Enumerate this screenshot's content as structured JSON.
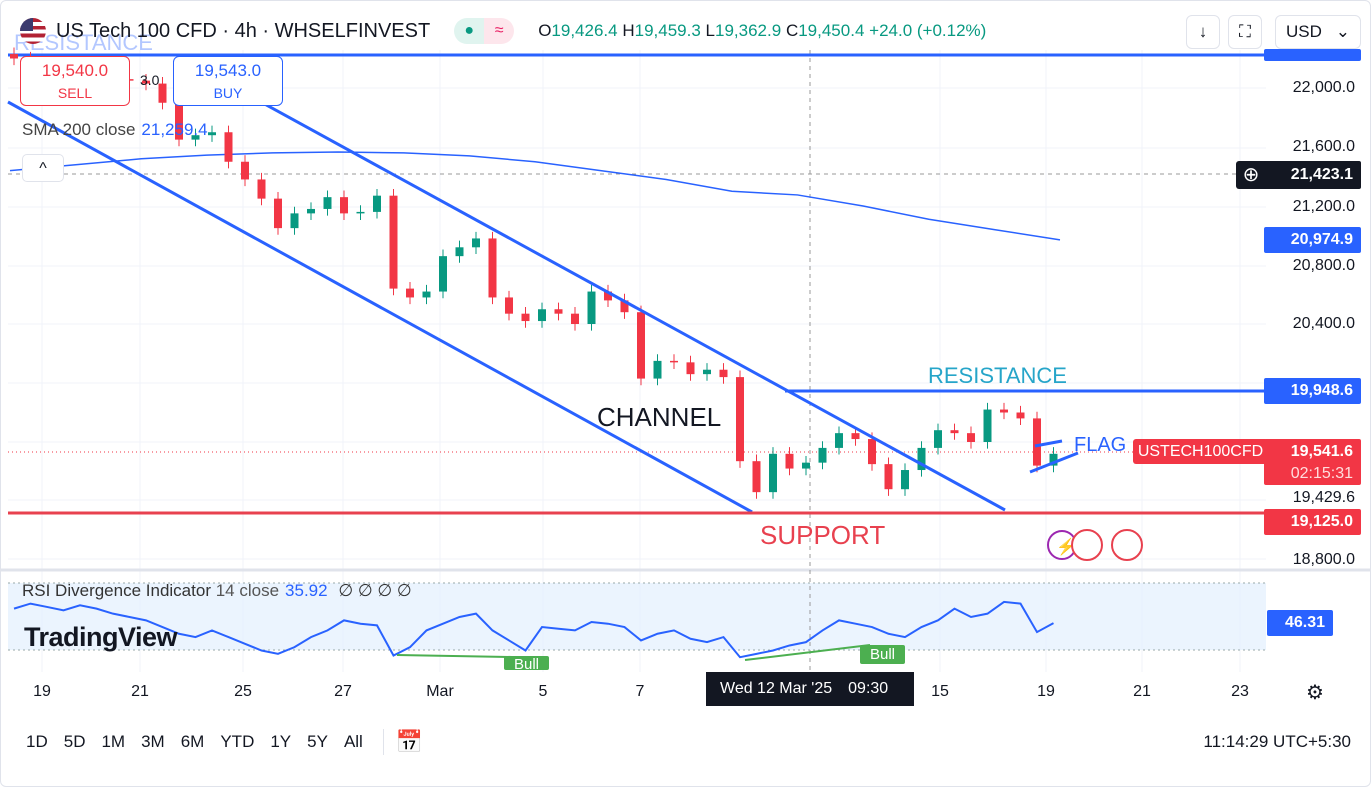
{
  "header": {
    "symbol": "US Tech 100 CFD · 4h · WHSELFINVEST",
    "open_label": "O",
    "open": "19,426.4",
    "high_label": "H",
    "high": "19,459.3",
    "low_label": "L",
    "low": "19,362.9",
    "close_label": "C",
    "close": "19,450.4",
    "change": "+24.0 (+0.12%)",
    "currency": "USD",
    "currency_chevron": "⌄",
    "download_icon": "↓",
    "fullscreen_icon": "⛶"
  },
  "trade": {
    "sell_price": "19,540.0",
    "sell_label": "SELL",
    "buy_price": "19,543.0",
    "buy_label": "BUY",
    "spread": "3.0"
  },
  "sma": {
    "label": "SMA 200 close",
    "value": "21,259.4"
  },
  "collapse_icon": "^",
  "annotations": {
    "resistance_top": "RESISTANCE",
    "channel": "CHANNEL",
    "resistance": "RESISTANCE",
    "support": "SUPPORT",
    "flag": "FLAG",
    "bull1": "Bull",
    "bull2": "Bull"
  },
  "price_axis": {
    "ticks": [
      "22,000.0",
      "21,600.0",
      "21,200.0",
      "20,800.0",
      "20,400.0",
      "19,429.6",
      "18,800.0"
    ],
    "crosshair": "21,423.1",
    "sma_tag": "20,974.9",
    "resistance_tag": "19,948.6",
    "symbol_tag": "USTECH100CFD",
    "last_price": "19,541.6",
    "countdown": "02:15:31",
    "support_tag": "19,125.0",
    "rsi_tag": "46.31"
  },
  "rsi": {
    "label": "RSI Divergence Indicator",
    "params": "14 close",
    "value": "35.92",
    "extras": "∅ ∅ ∅ ∅"
  },
  "logo": "TradingView",
  "time_axis": {
    "ticks": [
      "19",
      "21",
      "25",
      "27",
      "Mar",
      "5",
      "7",
      "15",
      "19",
      "21",
      "23"
    ],
    "crosshair": "Wed 12 Mar '25",
    "crosshair_time": "09:30"
  },
  "ranges": [
    "1D",
    "5D",
    "1M",
    "3M",
    "6M",
    "YTD",
    "1Y",
    "5Y",
    "All"
  ],
  "clock": "11:14:29 UTC+5:30",
  "colors": {
    "up": "#089981",
    "down": "#f23645",
    "accent": "#2962ff",
    "support": "#e8414f",
    "resistance_text": "#26a5c9"
  },
  "chart_data": {
    "type": "candlestick",
    "title": "US Tech 100 CFD · 4h",
    "ylim": [
      18700,
      22250
    ],
    "closes": [
      22200,
      22150,
      22120,
      22100,
      22090,
      22080,
      22060,
      22050,
      22030,
      21900,
      21650,
      21680,
      21700,
      21500,
      21380,
      21250,
      21050,
      21150,
      21180,
      21260,
      21150,
      21160,
      21270,
      20640,
      20580,
      20620,
      20860,
      20920,
      20980,
      20580,
      20470,
      20420,
      20500,
      20470,
      20400,
      20620,
      20560,
      20480,
      20030,
      20150,
      20140,
      20060,
      20090,
      20040,
      19470,
      19260,
      19520,
      19420,
      19460,
      19560,
      19660,
      19620,
      19450,
      19280,
      19410,
      19560,
      19680,
      19660,
      19600,
      19820,
      19800,
      19760,
      19440,
      19520
    ],
    "sma200": [
      21440,
      21480,
      21520,
      21545,
      21560,
      21566,
      21560,
      21540,
      21500,
      21440,
      21380,
      21300,
      21275,
      21200,
      21110,
      21040,
      20970
    ],
    "rsi": [
      55,
      58,
      56,
      54,
      57,
      55,
      52,
      50,
      48,
      44,
      40,
      38,
      42,
      38,
      34,
      30,
      28,
      32,
      38,
      42,
      48,
      46,
      45,
      27,
      32,
      42,
      46,
      50,
      52,
      42,
      36,
      30,
      44,
      43,
      42,
      47,
      46,
      44,
      36,
      40,
      42,
      37,
      35,
      38,
      26,
      28,
      30,
      33,
      35,
      42,
      48,
      46,
      44,
      40,
      38,
      44,
      48,
      55,
      50,
      52,
      59,
      58,
      41,
      46.31
    ],
    "resistance": 19948.6,
    "support": 19125.0
  }
}
